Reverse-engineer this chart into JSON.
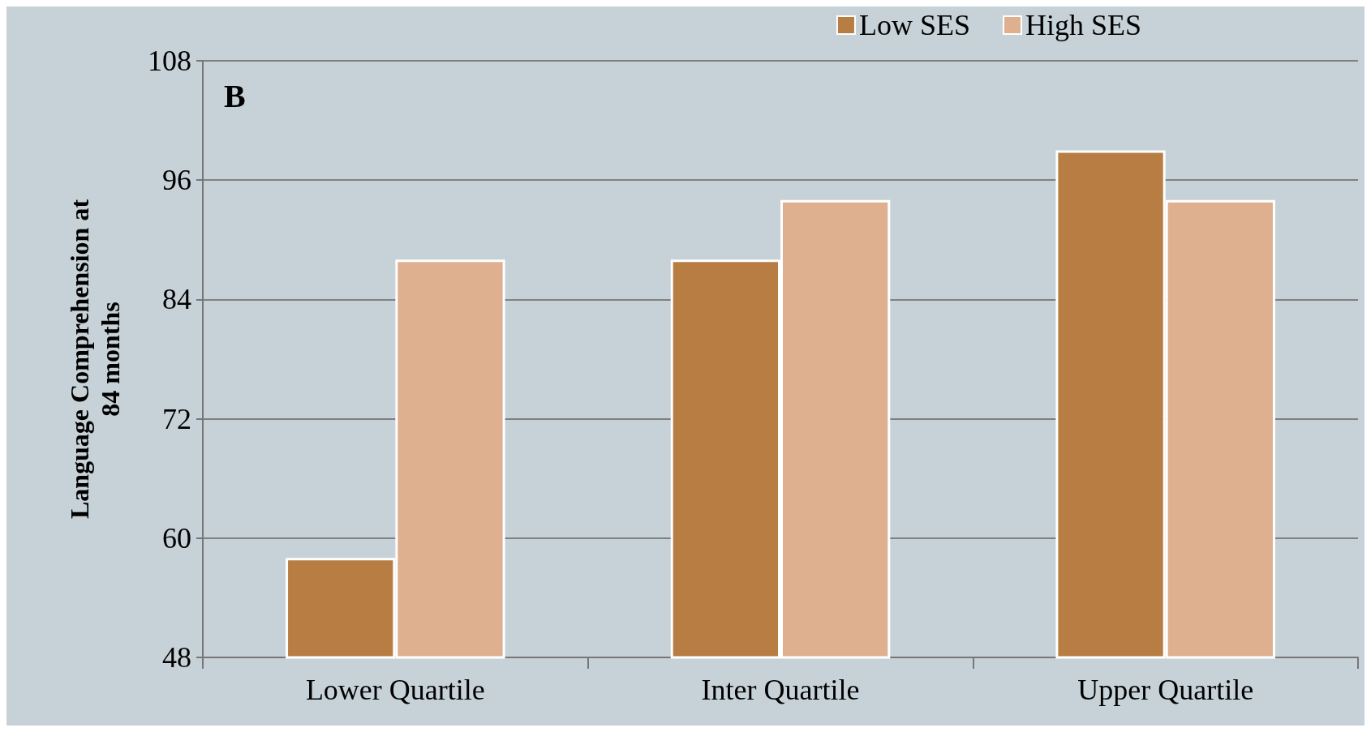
{
  "chart_data": {
    "type": "bar",
    "categories": [
      "Lower Quartile",
      "Inter Quartile",
      "Upper Quartile"
    ],
    "series": [
      {
        "name": "Low SES",
        "color": "#b87d42",
        "values": [
          58,
          88,
          99
        ]
      },
      {
        "name": "High SES",
        "color": "#dfb08f",
        "values": [
          88,
          94,
          94
        ]
      }
    ],
    "ylabel": "Language Comprehension at\n84 months",
    "ylim": [
      48,
      108
    ],
    "yticks": [
      48,
      60,
      72,
      84,
      96,
      108
    ],
    "grid": "y",
    "legend": "top right",
    "annotations": [
      "B"
    ]
  }
}
